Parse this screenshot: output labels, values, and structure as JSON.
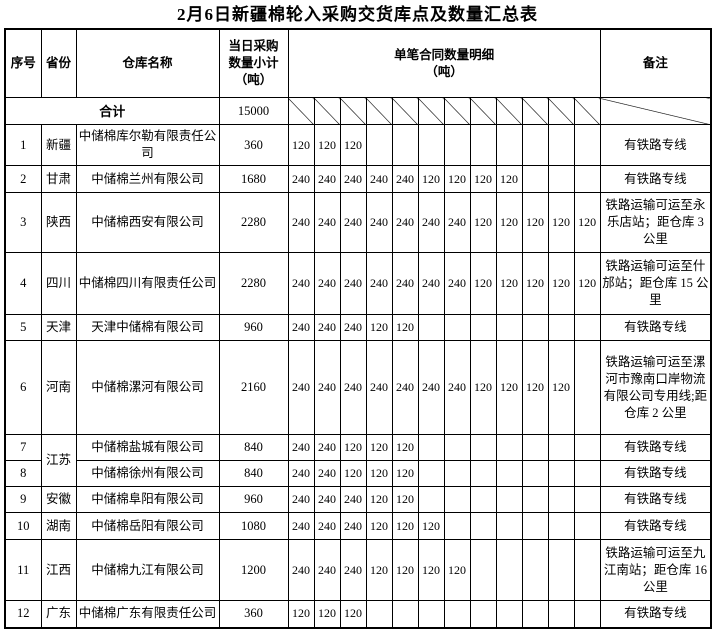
{
  "title": "2月6日新疆棉轮入采购交货库点及数量汇总表",
  "table": {
    "headers": {
      "index": "序号",
      "province": "省份",
      "warehouse": "仓库名称",
      "subtotal": "当日采购\n数量小计\n（吨）",
      "details": "单笔合同数量明细\n（吨）",
      "remark": "备注"
    },
    "total_row": {
      "label": "合计",
      "subtotal": "15000"
    },
    "rows": [
      {
        "index": "1",
        "province": "新疆",
        "warehouse": "中储棉库尔勒有限责任公司",
        "subtotal": "360",
        "details": [
          "120",
          "120",
          "120"
        ],
        "remark": "有铁路专线"
      },
      {
        "index": "2",
        "province": "甘肃",
        "warehouse": "中储棉兰州有限公司",
        "subtotal": "1680",
        "details": [
          "240",
          "240",
          "240",
          "240",
          "240",
          "120",
          "120",
          "120",
          "120"
        ],
        "remark": "有铁路专线"
      },
      {
        "index": "3",
        "province": "陕西",
        "warehouse": "中储棉西安有限公司",
        "subtotal": "2280",
        "details": [
          "240",
          "240",
          "240",
          "240",
          "240",
          "240",
          "240",
          "120",
          "120",
          "120",
          "120",
          "120"
        ],
        "remark": "铁路运输可运至永乐店站；距仓库 3 公里"
      },
      {
        "index": "4",
        "province": "四川",
        "warehouse": "中储棉四川有限责任公司",
        "subtotal": "2280",
        "details": [
          "240",
          "240",
          "240",
          "240",
          "240",
          "240",
          "240",
          "120",
          "120",
          "120",
          "120",
          "120"
        ],
        "remark": "铁路运输可运至什邡站；距仓库 15 公里"
      },
      {
        "index": "5",
        "province": "天津",
        "warehouse": "天津中储棉有限公司",
        "subtotal": "960",
        "details": [
          "240",
          "240",
          "240",
          "120",
          "120"
        ],
        "remark": "有铁路专线"
      },
      {
        "index": "6",
        "province": "河南",
        "warehouse": "中储棉漯河有限公司",
        "subtotal": "2160",
        "details": [
          "240",
          "240",
          "240",
          "240",
          "240",
          "240",
          "240",
          "120",
          "120",
          "120",
          "120"
        ],
        "remark": "铁路运输可运至漯河市豫南口岸物流有限公司专用线;距仓库 2 公里"
      },
      {
        "index": "7",
        "province": "江苏",
        "warehouse": "中储棉盐城有限公司",
        "subtotal": "840",
        "details": [
          "240",
          "240",
          "120",
          "120",
          "120"
        ],
        "remark": "有铁路专线"
      },
      {
        "index": "8",
        "province": "",
        "warehouse": "中储棉徐州有限公司",
        "subtotal": "840",
        "details": [
          "240",
          "240",
          "120",
          "120",
          "120"
        ],
        "remark": "有铁路专线"
      },
      {
        "index": "9",
        "province": "安徽",
        "warehouse": "中储棉阜阳有限公司",
        "subtotal": "960",
        "details": [
          "240",
          "240",
          "240",
          "120",
          "120"
        ],
        "remark": "有铁路专线"
      },
      {
        "index": "10",
        "province": "湖南",
        "warehouse": "中储棉岳阳有限公司",
        "subtotal": "1080",
        "details": [
          "240",
          "240",
          "240",
          "120",
          "120",
          "120"
        ],
        "remark": "有铁路专线"
      },
      {
        "index": "11",
        "province": "江西",
        "warehouse": "中储棉九江有限公司",
        "subtotal": "1200",
        "details": [
          "240",
          "240",
          "240",
          "120",
          "120",
          "120",
          "120"
        ],
        "remark": "铁路运输可运至九江南站；距仓库 16 公里"
      },
      {
        "index": "12",
        "province": "广东",
        "warehouse": "中储棉广东有限责任公司",
        "subtotal": "360",
        "details": [
          "120",
          "120",
          "120"
        ],
        "remark": "有铁路专线"
      }
    ]
  }
}
